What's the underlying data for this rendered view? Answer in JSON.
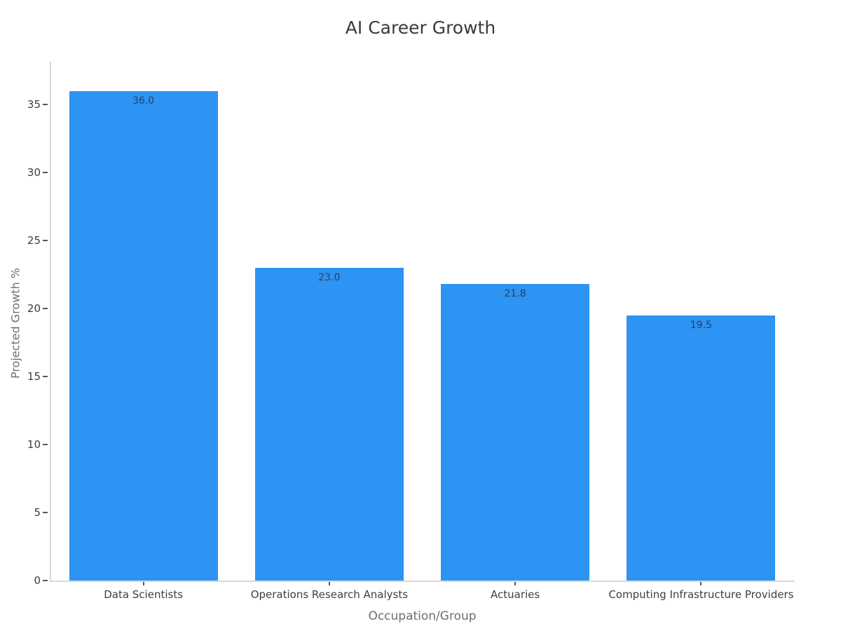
{
  "page": {
    "background": "#ffffff"
  },
  "chart_data": {
    "type": "bar",
    "title": "AI Career Growth",
    "xlabel": "Occupation/Group",
    "ylabel": "Projected Growth %",
    "categories": [
      "Data Scientists",
      "Operations Research Analysts",
      "Actuaries",
      "Computing Infrastructure Providers"
    ],
    "values": [
      36.0,
      23.0,
      21.8,
      19.5
    ],
    "value_labels": [
      "36.0",
      "23.0",
      "21.8",
      "19.5"
    ],
    "yticks": [
      0,
      5,
      10,
      15,
      20,
      25,
      30,
      35
    ],
    "ylim": [
      0,
      37.8
    ],
    "grid": false,
    "legend": false,
    "bar_relative_width": 0.8,
    "colors": {
      "bar": "#2D94F3",
      "value_label": "#2a3f5f",
      "axis_line": "#d9d9d9",
      "tick": "#555555",
      "tick_label": "#3b4045",
      "axis_title": "#6e6e6e",
      "title": "#3a3a3a",
      "background": "#ffffff"
    }
  }
}
